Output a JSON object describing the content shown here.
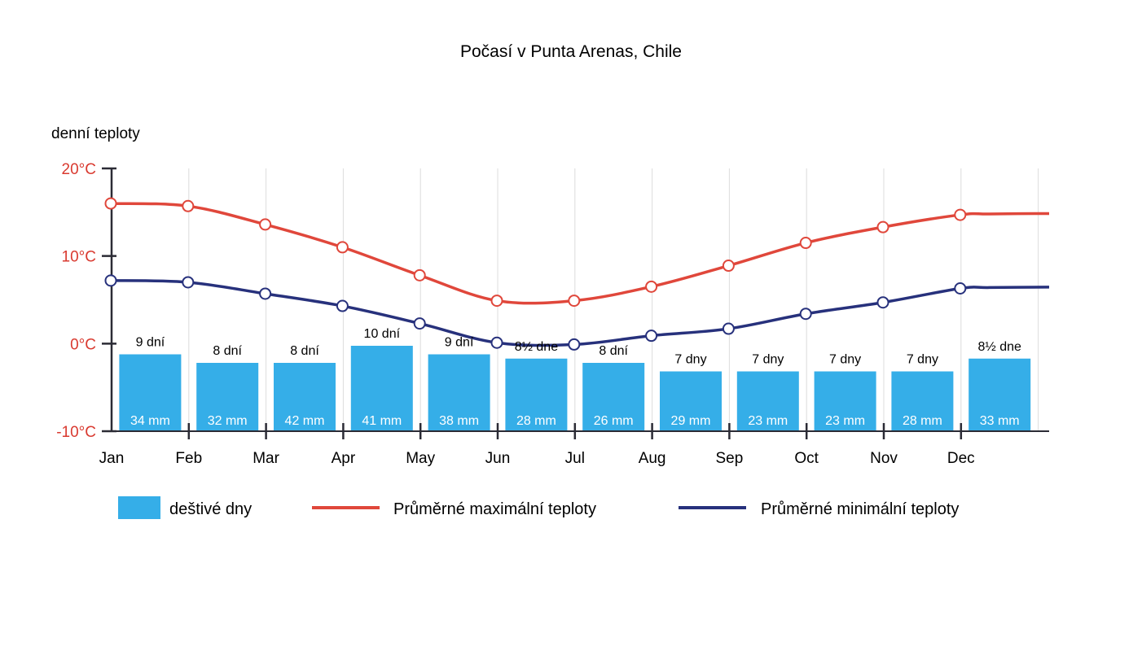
{
  "chart_data": {
    "type": "bar",
    "title": "Počasí v Punta Arenas, Chile",
    "ylabel": "denní teploty",
    "ylim": [
      -10,
      20
    ],
    "y_ticks": [
      {
        "value": 20,
        "label": "20°C"
      },
      {
        "value": 10,
        "label": "10°C"
      },
      {
        "value": 0,
        "label": "0°C"
      },
      {
        "value": -10,
        "label": "-10°C"
      }
    ],
    "categories": [
      "Jan",
      "Feb",
      "Mar",
      "Apr",
      "May",
      "Jun",
      "Jul",
      "Aug",
      "Sep",
      "Oct",
      "Nov",
      "Dec"
    ],
    "grid": true,
    "legend_position": "bottom",
    "series": [
      {
        "name": "deštivé dny",
        "type": "bar",
        "color": "#35aee8",
        "values": [
          9,
          8,
          8,
          10,
          9,
          8.5,
          8,
          7,
          7,
          7,
          7,
          8.5
        ],
        "labels": [
          "9 dní",
          "8 dní",
          "8 dní",
          "10 dní",
          "9 dní",
          "8½ dne",
          "8 dní",
          "7 dny",
          "7 dny",
          "7 dny",
          "7 dny",
          "8½ dne"
        ],
        "precipitation": [
          "34 mm",
          "32 mm",
          "42 mm",
          "41 mm",
          "38 mm",
          "28 mm",
          "26 mm",
          "29 mm",
          "23 mm",
          "23 mm",
          "28 mm",
          "33 mm"
        ]
      },
      {
        "name": "Průměrné maximální teploty",
        "type": "line",
        "color": "#e0473b",
        "values": [
          16,
          15.7,
          13.6,
          11,
          7.8,
          4.9,
          4.9,
          6.5,
          8.9,
          11.5,
          13.3,
          14.7
        ]
      },
      {
        "name": "Průměrné minimální teploty",
        "type": "line",
        "color": "#27317c",
        "values": [
          7.2,
          7,
          5.7,
          4.3,
          2.3,
          0.1,
          -0.1,
          0.9,
          1.7,
          3.4,
          4.7,
          6.3
        ]
      }
    ]
  },
  "legend": {
    "rainy_days": "deštivé dny",
    "max_temp": "Průměrné maximální teploty",
    "min_temp": "Průměrné minimální teploty"
  },
  "colors": {
    "axis_label_red": "#d93a30",
    "grid": "#dcdcdc",
    "axis": "#2b2b35"
  }
}
